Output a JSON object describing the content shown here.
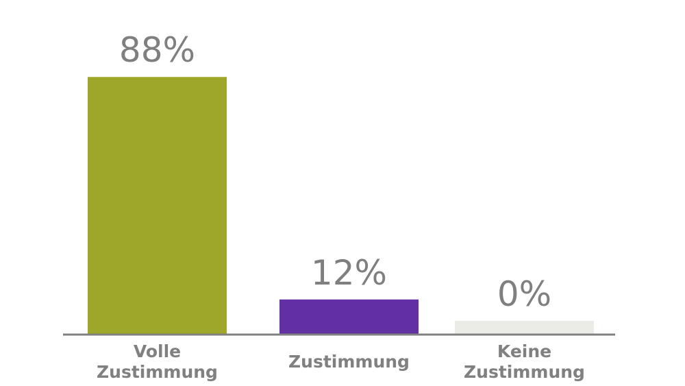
{
  "chart_data": {
    "type": "bar",
    "categories": [
      "Volle Zustimmung",
      "Zustimmung",
      "Keine Zustimmung"
    ],
    "category_lines": [
      [
        "Volle",
        "Zustimmung"
      ],
      [
        "Zustimmung"
      ],
      [
        "Keine",
        "Zustimmung"
      ]
    ],
    "values": [
      88,
      12,
      0
    ],
    "value_labels": [
      "88%",
      "12%",
      "0%"
    ],
    "colors": [
      "#9ea72a",
      "#6230a3",
      "#ecece6"
    ],
    "axis_color": "#7f7f7f",
    "ylim": [
      0,
      100
    ],
    "grid": false,
    "legend": "none"
  }
}
